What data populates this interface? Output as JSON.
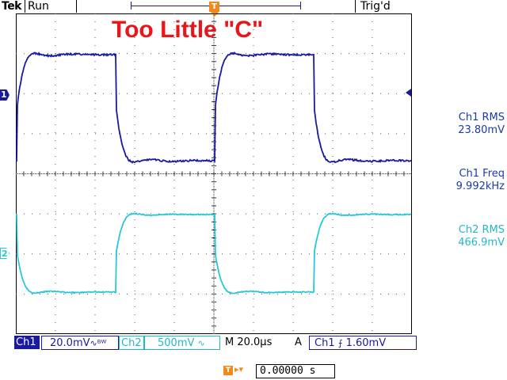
{
  "header": {
    "brand": "Tek",
    "run_state": "Run",
    "trigger_state": "Trig'd",
    "trigger_position_icon": "trigger-position-T-icon"
  },
  "plot": {
    "title": "Too Little \"C\"",
    "channel1_marker": "1",
    "channel2_marker": "2",
    "channel1_color": "#1a1aa0",
    "channel2_color": "#28c8d8",
    "title_color": "#e8151b",
    "grid_divisions_x": 10,
    "grid_divisions_y": 8
  },
  "measurements": [
    {
      "label": "Ch1 RMS",
      "value": "23.80mV"
    },
    {
      "label": "Ch1 Freq",
      "value": "9.992kHz"
    },
    {
      "label": "Ch2 RMS",
      "value": "466.9mV"
    }
  ],
  "status": {
    "ch1_label": "Ch1",
    "ch1_scale": "20.0mV",
    "ch1_coupling_icon": "ac-bandwidth-icon",
    "ch2_label": "Ch2",
    "ch2_scale": "500mV",
    "ch2_coupling_icon": "ac-icon",
    "timebase_mode": "M",
    "timebase": "20.0µs",
    "acq_mode": "A",
    "trigger_source": "Ch1",
    "trigger_slope_icon": "rising-edge-icon",
    "trigger_level": "1.60mV"
  },
  "horizontal_offset": {
    "icon": "trigger-offset-icon",
    "value": "0.00000 s"
  }
}
